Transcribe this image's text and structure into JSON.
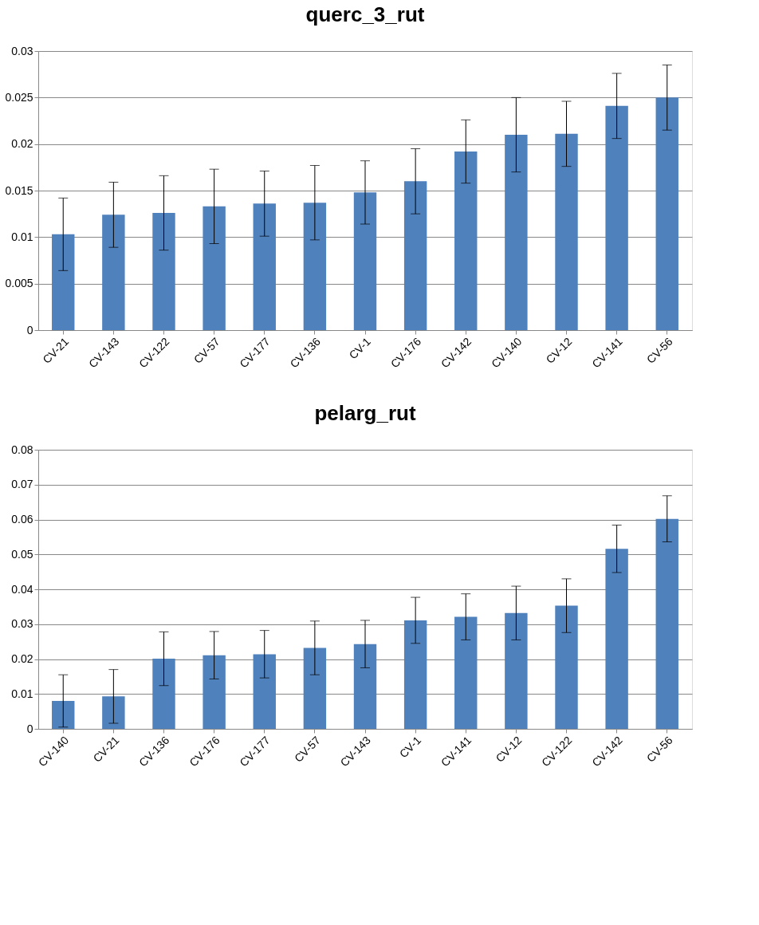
{
  "chart_data": [
    {
      "type": "bar",
      "title": "querc_3_rut",
      "categories": [
        "CV-21",
        "CV-143",
        "CV-122",
        "CV-57",
        "CV-177",
        "CV-136",
        "CV-1",
        "CV-176",
        "CV-142",
        "CV-140",
        "CV-12",
        "CV-141",
        "CV-56"
      ],
      "series": [
        {
          "color": "#4f81bd",
          "values": [
            0.0103,
            0.0124,
            0.0126,
            0.0133,
            0.0136,
            0.0137,
            0.0148,
            0.016,
            0.0192,
            0.021,
            0.0211,
            0.0241,
            0.025
          ],
          "errors": [
            0.0039,
            0.0035,
            0.004,
            0.004,
            0.0035,
            0.004,
            0.0034,
            0.0035,
            0.0034,
            0.004,
            0.0035,
            0.0035,
            0.0035
          ]
        }
      ],
      "ylim": [
        0,
        0.03
      ],
      "yticks": [
        0,
        0.005,
        0.01,
        0.015,
        0.02,
        0.025,
        0.03
      ],
      "grid": "y"
    },
    {
      "type": "bar",
      "title": "pelarg_rut",
      "categories": [
        "CV-140",
        "CV-21",
        "CV-136",
        "CV-176",
        "CV-177",
        "CV-57",
        "CV-143",
        "CV-1",
        "CV-141",
        "CV-12",
        "CV-122",
        "CV-142",
        "CV-56"
      ],
      "series": [
        {
          "color": "#4f81bd",
          "values": [
            0.008,
            0.0093,
            0.0201,
            0.0211,
            0.0214,
            0.0232,
            0.0243,
            0.0311,
            0.0321,
            0.0332,
            0.0353,
            0.0516,
            0.0602
          ],
          "errors": [
            0.0075,
            0.0077,
            0.0077,
            0.0068,
            0.0068,
            0.0077,
            0.0068,
            0.0066,
            0.0066,
            0.0077,
            0.0077,
            0.0068,
            0.0066
          ]
        }
      ],
      "ylim": [
        0,
        0.08
      ],
      "yticks": [
        0,
        0.01,
        0.02,
        0.03,
        0.04,
        0.05,
        0.06,
        0.07,
        0.08
      ],
      "grid": "y"
    }
  ]
}
